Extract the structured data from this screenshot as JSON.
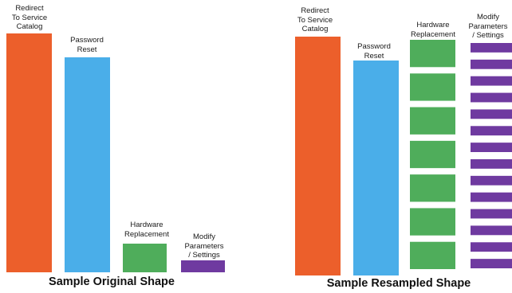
{
  "chart_data": [
    {
      "type": "bar",
      "title": "Sample Original Shape",
      "categories": [
        "Redirect\nTo Service\nCatalog",
        "Password\nReset",
        "Hardware\nReplacement",
        "Modify\nParameters\n/ Settings"
      ],
      "values": [
        100,
        90,
        12,
        5
      ],
      "colors": [
        "#ec5f2b",
        "#4aaee9",
        "#4fad5b",
        "#6f3aa0"
      ],
      "xlabel": "",
      "ylabel": "",
      "grid": false
    },
    {
      "type": "bar",
      "title": "Sample Resampled Shape",
      "categories": [
        "Redirect\nTo Service\nCatalog",
        "Password\nReset",
        "Hardware\nReplacement",
        "Modify\nParameters\n/ Settings"
      ],
      "values": [
        100,
        90,
        7,
        14
      ],
      "note_segments": "Hardware Replacement and Modify Parameters / Settings are each drawn as stacked copies of the original bar",
      "colors": [
        "#ec5f2b",
        "#4aaee9",
        "#4fad5b",
        "#6f3aa0"
      ],
      "xlabel": "",
      "ylabel": "",
      "grid": false
    }
  ]
}
